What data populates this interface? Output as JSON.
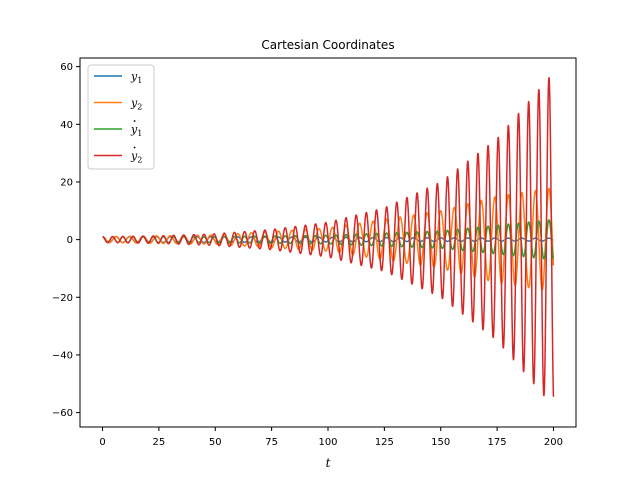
{
  "chart_data": {
    "type": "line",
    "title": "Cartesian Coordinates",
    "xlabel": "t",
    "ylabel": "",
    "xlim": [
      -10,
      210
    ],
    "ylim": [
      -65,
      63
    ],
    "x_ticks": [
      0,
      25,
      50,
      75,
      100,
      125,
      150,
      175,
      200
    ],
    "y_ticks": [
      -60,
      -40,
      -20,
      0,
      20,
      40,
      60
    ],
    "grid": false,
    "legend": {
      "placement": "top-left"
    },
    "t_range": [
      0,
      200
    ],
    "series": [
      {
        "name": "y1",
        "label_base": "y",
        "label_sub": "1",
        "dot": false,
        "color": "#1f77b4",
        "period": 6.0,
        "envelope": [
          [
            0,
            1.0
          ],
          [
            50,
            1.0
          ],
          [
            100,
            0.8
          ],
          [
            150,
            0.6
          ],
          [
            200,
            0.5
          ]
        ]
      },
      {
        "name": "y2",
        "label_base": "y",
        "label_sub": "2",
        "dot": false,
        "color": "#ff7f0e",
        "period": 6.0,
        "envelope": [
          [
            0,
            1.0
          ],
          [
            50,
            1.6
          ],
          [
            100,
            4.0
          ],
          [
            150,
            10.0
          ],
          [
            175,
            15.0
          ],
          [
            200,
            18.0
          ]
        ]
      },
      {
        "name": "ẏ1",
        "label_base": "y",
        "label_sub": "1",
        "dot": true,
        "color": "#2ca02c",
        "period": 4.5,
        "envelope": [
          [
            0,
            1.0
          ],
          [
            50,
            1.0
          ],
          [
            100,
            1.5
          ],
          [
            150,
            3.0
          ],
          [
            200,
            7.0
          ]
        ]
      },
      {
        "name": "ẏ2",
        "label_base": "y",
        "label_sub": "2",
        "dot": true,
        "color": "#d62728",
        "period": 4.5,
        "envelope": [
          [
            0,
            1.0
          ],
          [
            25,
            1.3
          ],
          [
            50,
            2.0
          ],
          [
            75,
            3.5
          ],
          [
            100,
            6.0
          ],
          [
            125,
            11.0
          ],
          [
            150,
            20.0
          ],
          [
            175,
            35.0
          ],
          [
            200,
            58.0
          ]
        ]
      }
    ]
  }
}
